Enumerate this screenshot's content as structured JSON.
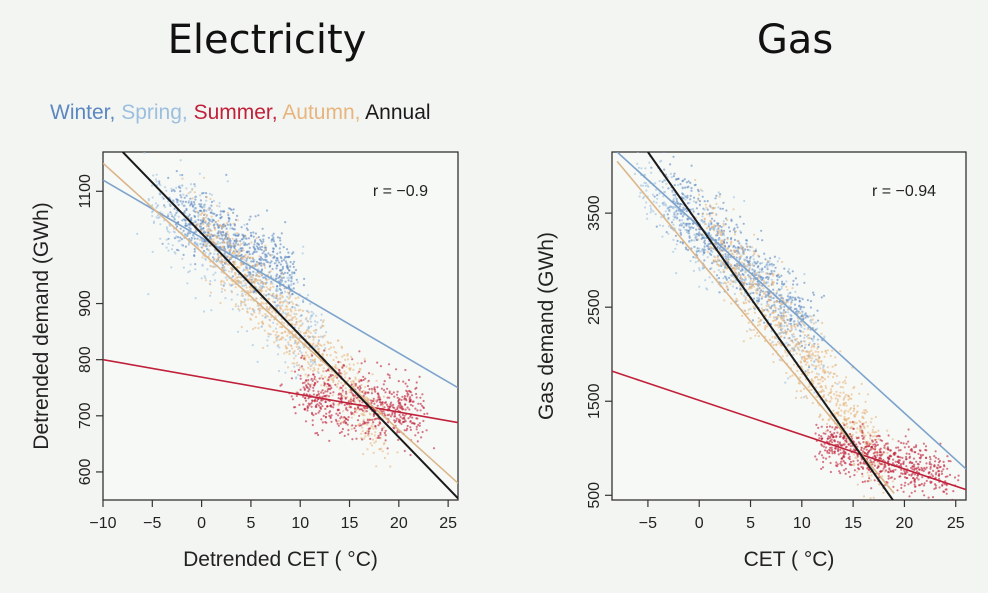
{
  "legend": {
    "items": [
      {
        "label": "Winter",
        "sep": ", ",
        "color": "#5b87c0"
      },
      {
        "label": "Spring",
        "sep": ", ",
        "color": "#9cbfdf"
      },
      {
        "label": "Summer",
        "sep": ", ",
        "color": "#c0203a"
      },
      {
        "label": "Autumn",
        "sep": ", ",
        "color": "#e7b57e"
      },
      {
        "label": "Annual",
        "sep": "",
        "color": "#1a1a1a"
      }
    ]
  },
  "chart_data": [
    {
      "type": "scatter",
      "title": "Electricity",
      "xlabel": "Detrended CET ( °C)",
      "ylabel": "Detrended demand (GWh)",
      "xlim": [
        -10,
        26
      ],
      "ylim": [
        550,
        1170
      ],
      "x_ticks": [
        -10,
        -5,
        0,
        5,
        10,
        15,
        20,
        25
      ],
      "y_ticks": [
        600,
        700,
        800,
        900,
        1100
      ],
      "annotation": "r = −0.9",
      "clusters": [
        {
          "series": "Winter",
          "x_range": [
            -3,
            9
          ],
          "y_at_x": [
            [
              -3,
              1070
            ],
            [
              9,
              950
            ]
          ],
          "spread": 30,
          "n": 700
        },
        {
          "series": "Spring",
          "x_range": [
            -5,
            12
          ],
          "y_at_x": [
            [
              -5,
              1080
            ],
            [
              12,
              830
            ]
          ],
          "spread": 45,
          "n": 500
        },
        {
          "series": "Autumn",
          "x_range": [
            0,
            18
          ],
          "y_at_x": [
            [
              0,
              1030
            ],
            [
              18,
              690
            ]
          ],
          "spread": 35,
          "n": 900
        },
        {
          "series": "Summer",
          "x_range": [
            10,
            22
          ],
          "y_at_x": [
            [
              10,
              740
            ],
            [
              22,
              705
            ]
          ],
          "spread": 28,
          "n": 650
        }
      ],
      "fit_lines": [
        {
          "series": "Winter",
          "points": [
            [
              -10,
              1120
            ],
            [
              26,
              750
            ]
          ]
        },
        {
          "series": "Summer",
          "points": [
            [
              -10,
              800
            ],
            [
              26,
              688
            ]
          ]
        },
        {
          "series": "Autumn",
          "points": [
            [
              -10,
              1150
            ],
            [
              26,
              580
            ]
          ]
        },
        {
          "series": "Annual",
          "points": [
            [
              -8,
              1170
            ],
            [
              26,
              553
            ]
          ]
        }
      ]
    },
    {
      "type": "scatter",
      "title": "Gas",
      "xlabel": "CET ( °C)",
      "ylabel": "Gas demand (GWh)",
      "xlim": [
        -8.5,
        26
      ],
      "ylim": [
        450,
        4150
      ],
      "x_ticks": [
        -5,
        0,
        5,
        10,
        15,
        20,
        25
      ],
      "y_ticks": [
        500,
        1500,
        2500,
        3500
      ],
      "annotation": "r = −0.94",
      "clusters": [
        {
          "series": "Winter",
          "x_range": [
            -3,
            11
          ],
          "y_at_x": [
            [
              -3,
              3650
            ],
            [
              11,
              2300
            ]
          ],
          "spread": 200,
          "n": 700
        },
        {
          "series": "Spring",
          "x_range": [
            -6,
            12
          ],
          "y_at_x": [
            [
              -6,
              3900
            ],
            [
              12,
              2000
            ]
          ],
          "spread": 230,
          "n": 500
        },
        {
          "series": "Autumn",
          "x_range": [
            1,
            18
          ],
          "y_at_x": [
            [
              1,
              3300
            ],
            [
              18,
              850
            ]
          ],
          "spread": 220,
          "n": 900
        },
        {
          "series": "Summer",
          "x_range": [
            12,
            24
          ],
          "y_at_x": [
            [
              12,
              1050
            ],
            [
              24,
              700
            ]
          ],
          "spread": 130,
          "n": 650
        }
      ],
      "fit_lines": [
        {
          "series": "Winter",
          "points": [
            [
              -8,
              4150
            ],
            [
              26,
              780
            ]
          ]
        },
        {
          "series": "Summer",
          "points": [
            [
              -8.5,
              1820
            ],
            [
              26,
              560
            ]
          ]
        },
        {
          "series": "Autumn",
          "points": [
            [
              -8,
              4050
            ],
            [
              19,
              520
            ]
          ]
        },
        {
          "series": "Annual",
          "points": [
            [
              -5,
              4150
            ],
            [
              19,
              430
            ]
          ]
        }
      ]
    }
  ]
}
